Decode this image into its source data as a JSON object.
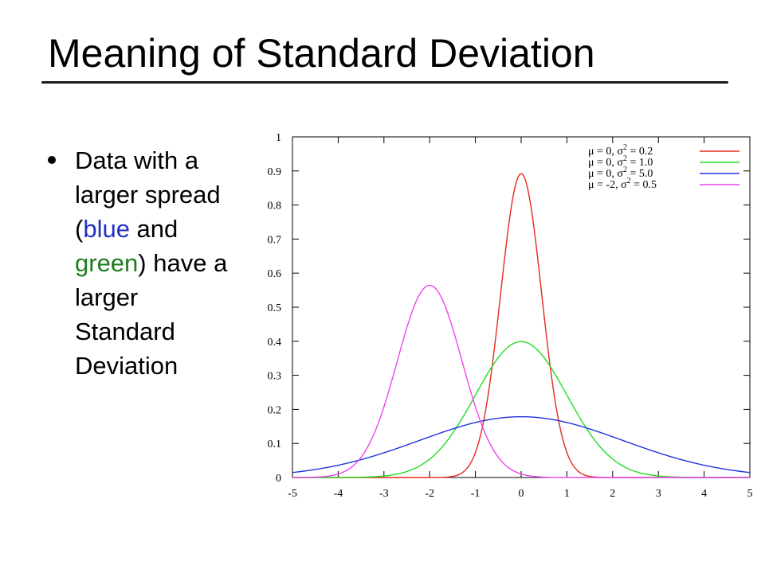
{
  "slide": {
    "title": "Meaning of Standard Deviation",
    "bullet": {
      "line1": "Data with a",
      "line2": "larger spread",
      "line3_pre": "(",
      "line3_blue": "blue",
      "line3_post": " and",
      "line4_green": "green",
      "line4_post": ") have a",
      "line5": "larger",
      "line6": "Standard",
      "line7": "Deviation"
    }
  },
  "colors": {
    "blue_word": "#1f31c4",
    "green_word": "#1c7d1c"
  },
  "chart_data": {
    "type": "line",
    "title": "",
    "xlabel": "",
    "ylabel": "",
    "xlim": [
      -5,
      5
    ],
    "ylim": [
      0,
      1
    ],
    "xticks": [
      "-5",
      "-4",
      "-3",
      "-2",
      "-1",
      "0",
      "1",
      "2",
      "3",
      "4",
      "5"
    ],
    "yticks": [
      "0",
      "0.1",
      "0.2",
      "0.3",
      "0.4",
      "0.5",
      "0.6",
      "0.7",
      "0.8",
      "0.9",
      "1"
    ],
    "grid": false,
    "legend_position": "top-right",
    "series": [
      {
        "name": "μ = 0, σ² = 0.2",
        "mu_label": "μ =  0,",
        "sigma_label": "σ",
        "sup": "2",
        "sub": "",
        "value_label": " = 0.2",
        "mu": 0,
        "variance": 0.2,
        "color": "#e8271c"
      },
      {
        "name": "μ = 0, σ² = 1.0",
        "mu_label": "μ =  0,",
        "sigma_label": "σ",
        "sup": "2",
        "sub": "",
        "value_label": " = 1.0",
        "mu": 0,
        "variance": 1.0,
        "color": "#22dd22"
      },
      {
        "name": "μ = 0, σ² = 5.0",
        "mu_label": "μ =  0,",
        "sigma_label": "σ",
        "sup": "2",
        "sub": "",
        "value_label": " = 5.0",
        "mu": 0,
        "variance": 5.0,
        "color": "#2233dd"
      },
      {
        "name": "μ = -2, σ² = 0.5",
        "mu_label": "μ = -2,",
        "sigma_label": "σ",
        "sup": "2",
        "sub": "",
        "value_label": " = 0.5",
        "mu": -2,
        "variance": 0.5,
        "color": "#ee44ee"
      }
    ]
  }
}
